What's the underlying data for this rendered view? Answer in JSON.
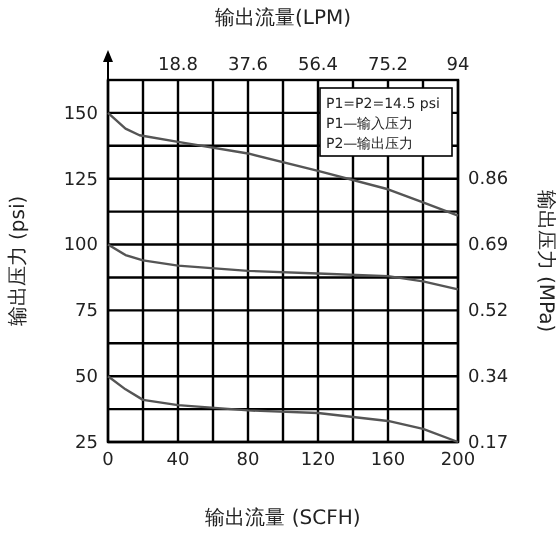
{
  "chart_data": {
    "type": "line",
    "x2label": "输出流量(LPM)",
    "xlabel": "输出流量 (SCFH)",
    "ylabel": "输出压力 (psi)",
    "y2label": "输出压力 (MPa)",
    "annotations": [
      "P1=P2=14.5 psi",
      "P1—输入压力",
      "P2—输出压力"
    ],
    "series": [
      {
        "color": "#555555",
        "x": [
          0,
          10,
          18,
          40,
          80,
          120,
          160,
          180,
          200
        ],
        "values": [
          150,
          144,
          141.5,
          139,
          134.6,
          128,
          121,
          116,
          111
        ]
      },
      {
        "color": "#555555",
        "x": [
          0,
          10,
          20,
          40,
          80,
          120,
          160,
          180,
          200
        ],
        "values": [
          100,
          96,
          94,
          92,
          90,
          89,
          88,
          86,
          83
        ]
      },
      {
        "color": "#555555",
        "x": [
          0,
          10,
          20,
          40,
          80,
          120,
          160,
          180,
          200
        ],
        "values": [
          50,
          45,
          41,
          39,
          37,
          36,
          33,
          30,
          25
        ]
      }
    ],
    "xlim": [
      0,
      200
    ],
    "xticks": [
      0,
      {
        "value": 20,
        "label": null
      },
      40,
      {
        "value": 60,
        "label": null
      },
      80,
      {
        "value": 100,
        "label": null
      },
      120,
      {
        "value": 140,
        "label": null
      },
      160,
      {
        "value": 180,
        "label": null
      },
      200
    ],
    "x2lim": [
      0,
      94
    ],
    "x2ticks": [
      18.8,
      37.6,
      56.4,
      75.2,
      94
    ],
    "ylim": [
      25,
      162.5
    ],
    "yticks": [
      25,
      {
        "value": 37.5,
        "label": null
      },
      50,
      {
        "value": 62.5,
        "label": null
      },
      75,
      {
        "value": 87.5,
        "label": null
      },
      100,
      {
        "value": 112.5,
        "label": null
      },
      125,
      {
        "value": 137.5,
        "label": null
      },
      150
    ],
    "y2lim": [
      0.172,
      1.12
    ],
    "y2ticks": [
      {
        "value": 0.172,
        "label": "0.17"
      },
      {
        "value": 0.345,
        "label": "0.34"
      },
      {
        "value": 0.517,
        "label": "0.52"
      },
      {
        "value": 0.689,
        "label": "0.69"
      },
      {
        "value": 0.862,
        "label": "0.86"
      }
    ],
    "grid": true,
    "marker": "none",
    "line_style": "solid"
  }
}
